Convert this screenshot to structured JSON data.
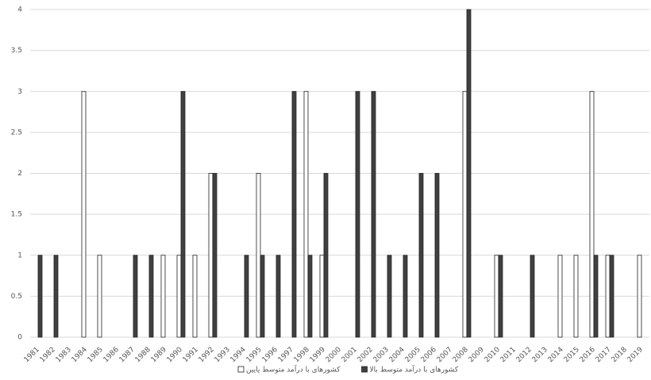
{
  "chart_data": {
    "type": "bar",
    "categories": [
      "1981",
      "1982",
      "1983",
      "1984",
      "1985",
      "1986",
      "1987",
      "1988",
      "1989",
      "1990",
      "1991",
      "1992",
      "1993",
      "1994",
      "1995",
      "1996",
      "1997",
      "1998",
      "1999",
      "2000",
      "2001",
      "2002",
      "2003",
      "2004",
      "2005",
      "2006",
      "2007",
      "2008",
      "2009",
      "2010",
      "2011",
      "2012",
      "2013",
      "2014",
      "2015",
      "2016",
      "2017",
      "2018",
      "2019"
    ],
    "series": [
      {
        "name": "کشورهای با درآمد متوسط پایین",
        "color": "#ffffff",
        "values": [
          0,
          0,
          0,
          3,
          1,
          0,
          0,
          0,
          1,
          1,
          1,
          2,
          0,
          0,
          2,
          0,
          0,
          3,
          1,
          0,
          0,
          0,
          0,
          0,
          0,
          0,
          0,
          3,
          0,
          1,
          0,
          0,
          0,
          1,
          1,
          3,
          1,
          0,
          1
        ]
      },
      {
        "name": "کشورهای با درآمد متوسط بالا",
        "color": "#404040",
        "values": [
          1,
          1,
          0,
          0,
          0,
          0,
          1,
          1,
          0,
          3,
          0,
          2,
          0,
          1,
          1,
          1,
          3,
          1,
          2,
          0,
          3,
          3,
          1,
          1,
          2,
          2,
          0,
          4,
          0,
          1,
          0,
          1,
          0,
          0,
          0,
          1,
          1,
          0,
          0
        ]
      }
    ],
    "ylim": [
      0,
      4
    ],
    "yticks": [
      0,
      0.5,
      1,
      1.5,
      2,
      2.5,
      3,
      3.5,
      4
    ],
    "grid": true,
    "legend": "bottom"
  }
}
